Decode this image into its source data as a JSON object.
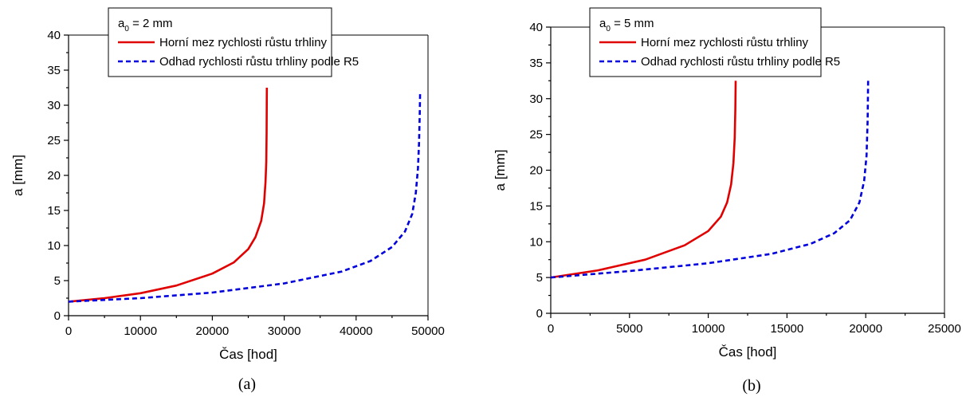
{
  "chart_data": [
    {
      "type": "line",
      "panel_label": "(a)",
      "xlabel": "Čas [hod]",
      "ylabel": "a [mm]",
      "xlim": [
        0,
        50000
      ],
      "ylim": [
        0,
        40
      ],
      "xticks": [
        0,
        10000,
        20000,
        30000,
        40000,
        50000
      ],
      "yticks": [
        0,
        5,
        10,
        15,
        20,
        25,
        30,
        35,
        40
      ],
      "legend": {
        "title_base": "a",
        "title_sub": "0",
        "title_rest": " = 2 mm",
        "placement": "top-left"
      },
      "series": [
        {
          "name": "Horní mez rychlosti růstu trhliny",
          "color": "#e00000",
          "style": "solid",
          "x": [
            0,
            5000,
            10000,
            15000,
            20000,
            23000,
            25000,
            26000,
            26800,
            27200,
            27400,
            27500,
            27550,
            27580
          ],
          "y": [
            2,
            2.5,
            3.2,
            4.3,
            6,
            7.6,
            9.5,
            11.2,
            13.5,
            16,
            19,
            22,
            26,
            32.5
          ]
        },
        {
          "name": "Odhad rychlosti růstu trhliny podle R5",
          "color": "#0000dd",
          "style": "dashed",
          "x": [
            0,
            10000,
            20000,
            30000,
            38000,
            42000,
            45000,
            46800,
            47800,
            48300,
            48600,
            48750,
            48850,
            48900
          ],
          "y": [
            2,
            2.5,
            3.3,
            4.6,
            6.3,
            7.8,
            9.8,
            12,
            14.5,
            17.5,
            21,
            24.5,
            28.5,
            31.8
          ]
        }
      ]
    },
    {
      "type": "line",
      "panel_label": "(b)",
      "xlabel": "Čas [hod]",
      "ylabel": "a [mm]",
      "xlim": [
        0,
        25000
      ],
      "ylim": [
        0,
        40
      ],
      "xticks": [
        0,
        5000,
        10000,
        15000,
        20000,
        25000
      ],
      "yticks": [
        0,
        5,
        10,
        15,
        20,
        25,
        30,
        35,
        40
      ],
      "legend": {
        "title_base": "a",
        "title_sub": "0",
        "title_rest": " = 5 mm",
        "placement": "top-left"
      },
      "series": [
        {
          "name": "Horní mez rychlosti růstu trhliny",
          "color": "#e00000",
          "style": "solid",
          "x": [
            0,
            3000,
            6000,
            8500,
            10000,
            10800,
            11200,
            11450,
            11600,
            11680,
            11720,
            11740
          ],
          "y": [
            5,
            6,
            7.5,
            9.5,
            11.5,
            13.5,
            15.5,
            18,
            21,
            24.5,
            28.5,
            32.5
          ]
        },
        {
          "name": "Odhad rychlosti růstu trhliny podle R5",
          "color": "#0000dd",
          "style": "dashed",
          "x": [
            0,
            5000,
            10000,
            14000,
            16500,
            18000,
            19000,
            19600,
            19900,
            20050,
            20120,
            20150
          ],
          "y": [
            5,
            5.9,
            7,
            8.3,
            9.7,
            11.2,
            13,
            15.5,
            18.5,
            22,
            27,
            32.5
          ]
        }
      ]
    }
  ]
}
